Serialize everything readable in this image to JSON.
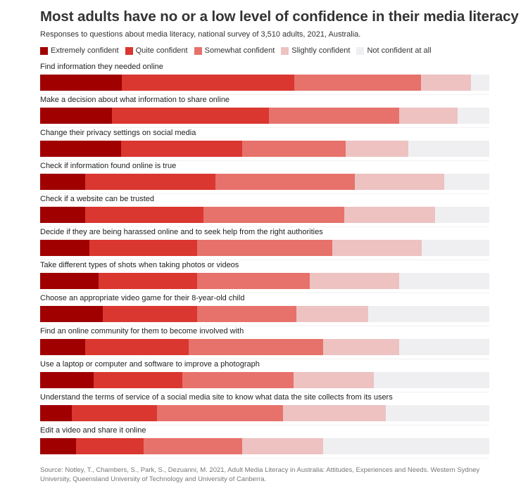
{
  "chart_data": {
    "type": "bar",
    "orientation": "horizontal",
    "stacked": true,
    "title": "Most adults have no or a low level of confidence in their media literacy",
    "subtitle": "Responses to questions about media literacy, national survey of 3,510 adults, 2021, Australia.",
    "legend_placement": "top",
    "xlim": [
      0,
      100
    ],
    "grid": false,
    "series_names": [
      "Extremely confident",
      "Quite confident",
      "Somewhat confident",
      "Slightly confident",
      "Not confident at all"
    ],
    "colors": [
      "#a00000",
      "#da3730",
      "#e6726b",
      "#edc2c1",
      "#efeff2"
    ],
    "categories": [
      "Find information they needed online",
      "Make a decision about what information to share online",
      "Change their privacy settings on social media",
      "Check if information found online is true",
      "Check if a website can be trusted",
      "Decide if they are being harassed online and to seek help from the right authorities",
      "Take different types of shots when taking photos or videos",
      "Choose an appropriate video game for their 8-year-old child",
      "Find an online community for them to become involved with",
      "Use a laptop or computer and software to improve a photograph",
      "Understand the terms of service of a social media site to know what data the site collects from its users",
      "Edit a video and share it online"
    ],
    "values": [
      [
        18,
        38,
        28,
        11,
        4
      ],
      [
        16,
        35,
        29,
        13,
        7
      ],
      [
        18,
        27,
        23,
        14,
        18
      ],
      [
        10,
        29,
        31,
        20,
        10
      ],
      [
        10,
        26,
        31,
        20,
        12
      ],
      [
        11,
        24,
        30,
        20,
        15
      ],
      [
        13,
        22,
        25,
        20,
        20
      ],
      [
        14,
        21,
        22,
        16,
        27
      ],
      [
        10,
        23,
        30,
        17,
        20
      ],
      [
        12,
        20,
        25,
        18,
        26
      ],
      [
        7,
        19,
        28,
        23,
        23
      ],
      [
        8,
        15,
        22,
        18,
        37
      ]
    ],
    "source": "Source: Notley, T., Chambers, S., Park, S., Dezuanni, M. 2021, Adult Media Literacy in Australia: Attitudes, Experiences and Needs. Western Sydney University, Queensland University of Technology and University of Canberra."
  }
}
